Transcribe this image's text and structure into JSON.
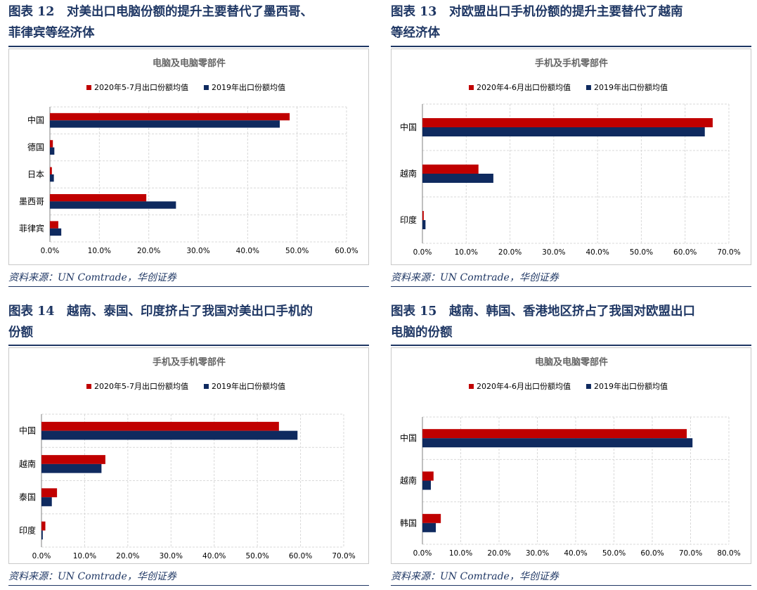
{
  "colors": {
    "series_2020": "#c00000",
    "series_2019": "#0f2a5f",
    "title_blue": "#1f3764",
    "grid": "#d9d9d9"
  },
  "source": "资料来源：UN Comtrade，华创证券",
  "panels": [
    {
      "title_l1": "图表 12　对美出口电脑份额的提升主要替代了墨西哥、",
      "title_l2": "菲律宾等经济体"
    },
    {
      "title_l1": "图表 13　对欧盟出口手机份额的提升主要替代了越南",
      "title_l2": "等经济体"
    },
    {
      "title_l1": "图表 14　越南、泰国、印度挤占了我国对美出口手机的",
      "title_l2": "份额"
    },
    {
      "title_l1": "图表 15　越南、韩国、香港地区挤占了我国对欧盟出口",
      "title_l2": "电脑的份额"
    }
  ],
  "chart_data": [
    {
      "type": "bar",
      "orientation": "horizontal",
      "title": "电脑及电脑零部件",
      "categories": [
        "中国",
        "德国",
        "日本",
        "墨西哥",
        "菲律宾"
      ],
      "series": [
        {
          "name": "2020年5-7月出口份额均值",
          "values": [
            48.5,
            0.6,
            0.4,
            19.5,
            1.7
          ]
        },
        {
          "name": "2019年出口份额均值",
          "values": [
            46.5,
            0.9,
            0.8,
            25.5,
            2.3
          ]
        }
      ],
      "xlim": [
        0,
        60
      ],
      "xticks": [
        "0.0%",
        "10.0%",
        "20.0%",
        "30.0%",
        "40.0%",
        "50.0%",
        "60.0%"
      ],
      "grid": true,
      "legend": "top"
    },
    {
      "type": "bar",
      "orientation": "horizontal",
      "title": "手机及手机零部件",
      "categories": [
        "中国",
        "越南",
        "印度"
      ],
      "series": [
        {
          "name": "2020年4-6月出口份额均值",
          "values": [
            66.3,
            12.8,
            0.3
          ]
        },
        {
          "name": "2019年出口份额均值",
          "values": [
            64.5,
            16.2,
            0.7
          ]
        }
      ],
      "xlim": [
        0,
        70
      ],
      "xticks": [
        "0.0%",
        "10.0%",
        "20.0%",
        "30.0%",
        "40.0%",
        "50.0%",
        "60.0%",
        "70.0%"
      ],
      "grid": true,
      "legend": "top"
    },
    {
      "type": "bar",
      "orientation": "horizontal",
      "title": "手机及手机零部件",
      "categories": [
        "中国",
        "越南",
        "泰国",
        "印度"
      ],
      "series": [
        {
          "name": "2020年5-7月出口份额均值",
          "values": [
            55.0,
            14.8,
            3.6,
            0.9
          ]
        },
        {
          "name": "2019年出口份额均值",
          "values": [
            59.3,
            13.9,
            2.4,
            0.3
          ]
        }
      ],
      "xlim": [
        0,
        70
      ],
      "xticks": [
        "0.0%",
        "10.0%",
        "20.0%",
        "30.0%",
        "40.0%",
        "50.0%",
        "60.0%",
        "70.0%"
      ],
      "grid": true,
      "legend": "top"
    },
    {
      "type": "bar",
      "orientation": "horizontal",
      "title": "电脑及电脑零部件",
      "categories": [
        "中国",
        "越南",
        "韩国"
      ],
      "series": [
        {
          "name": "2020年4-6月出口份额均值",
          "values": [
            69.0,
            2.9,
            4.8
          ]
        },
        {
          "name": "2019年出口份额均值",
          "values": [
            70.5,
            2.2,
            3.5
          ]
        }
      ],
      "xlim": [
        0,
        80
      ],
      "xticks": [
        "0.0%",
        "10.0%",
        "20.0%",
        "30.0%",
        "40.0%",
        "50.0%",
        "60.0%",
        "70.0%",
        "80.0%"
      ],
      "grid": true,
      "legend": "top"
    }
  ]
}
